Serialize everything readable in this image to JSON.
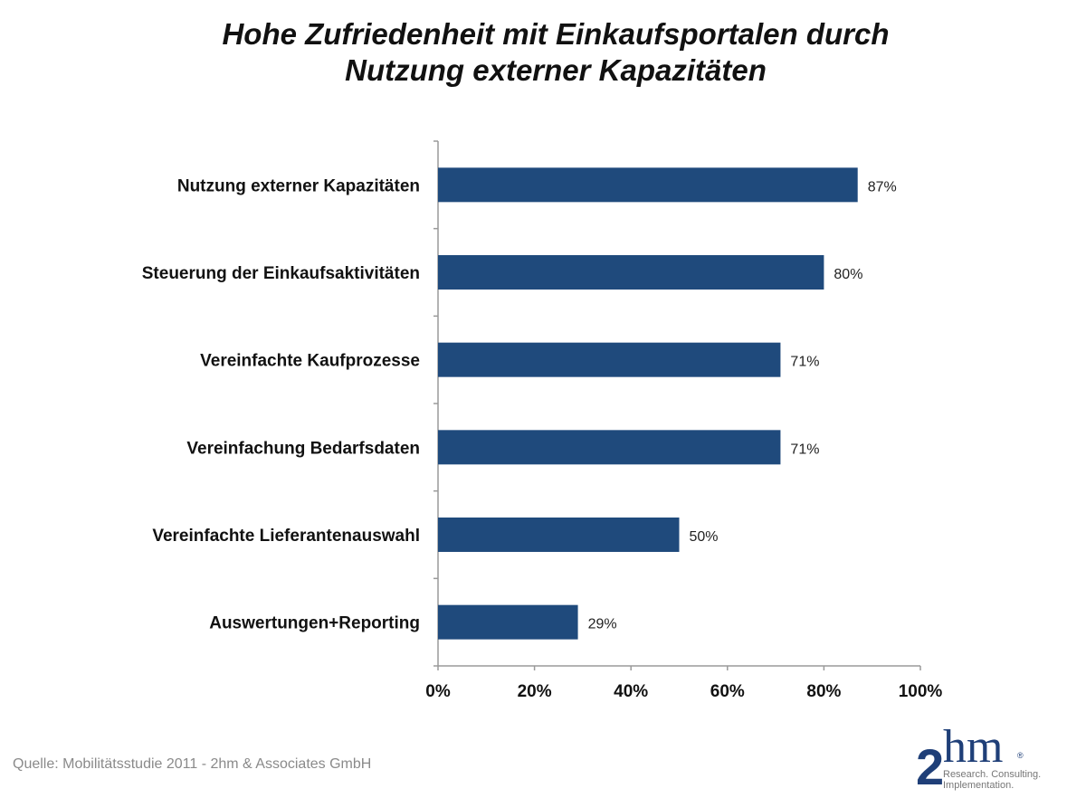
{
  "chart_data": {
    "type": "bar",
    "orientation": "horizontal",
    "title": [
      "Hohe Zufriedenheit mit Einkaufsportalen durch",
      "Nutzung externer Kapazitäten"
    ],
    "categories": [
      "Nutzung externer Kapazitäten",
      "Steuerung der Einkaufsaktivitäten",
      "Vereinfachte Kaufprozesse",
      "Vereinfachung Bedarfsdaten",
      "Vereinfachte Lieferantenauswahl",
      "Auswertungen+Reporting"
    ],
    "values": [
      87,
      80,
      71,
      71,
      50,
      29
    ],
    "data_labels": [
      "87%",
      "80%",
      "71%",
      "71%",
      "50%",
      "29%"
    ],
    "xlim": [
      0,
      100
    ],
    "x_ticks": [
      "0%",
      "20%",
      "40%",
      "60%",
      "80%",
      "100%"
    ],
    "grid": false,
    "legend": "none",
    "bar_color": "#1f4a7c"
  },
  "source": "Quelle: Mobilitätsstudie 2011  -  2hm  & Associates GmbH",
  "logo": {
    "text": "2hm",
    "tagline": [
      "Research. Consulting.",
      "Implementation."
    ]
  }
}
